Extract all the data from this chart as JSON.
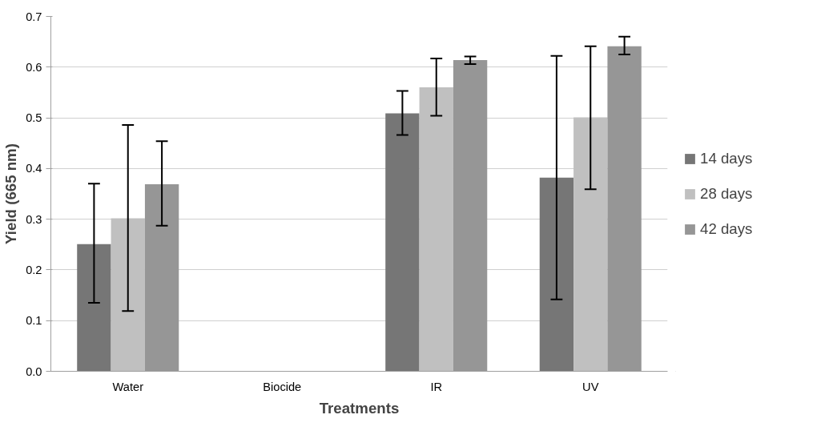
{
  "chart_data": {
    "type": "bar",
    "xlabel": "Treatments",
    "ylabel": "Yield (665 nm)",
    "categories": [
      "Water",
      "Biocide",
      "IR",
      "UV"
    ],
    "series": [
      {
        "name": "14 days",
        "color": "#767676",
        "values": [
          0.251,
          null,
          0.509,
          0.382
        ],
        "errors": [
          [
            0.135,
            0.37
          ],
          null,
          [
            0.466,
            0.553
          ],
          [
            0.142,
            0.622
          ]
        ]
      },
      {
        "name": "28 days",
        "color": "#c0c0c0",
        "values": [
          0.302,
          null,
          0.56,
          0.501
        ],
        "errors": [
          [
            0.119,
            0.486
          ],
          null,
          [
            0.504,
            0.617
          ],
          [
            0.359,
            0.641
          ]
        ]
      },
      {
        "name": "42 days",
        "color": "#969696",
        "values": [
          0.369,
          null,
          0.614,
          0.641
        ],
        "errors": [
          [
            0.287,
            0.454
          ],
          null,
          [
            0.606,
            0.621
          ],
          [
            0.625,
            0.66
          ]
        ]
      }
    ],
    "ylim": [
      0,
      0.7
    ],
    "yticks": [
      {
        "value": 0,
        "label": "0.0"
      },
      0.1,
      0.2,
      0.3,
      0.4,
      0.5,
      0.6,
      0.7
    ],
    "grid": "y",
    "legend": "right"
  }
}
